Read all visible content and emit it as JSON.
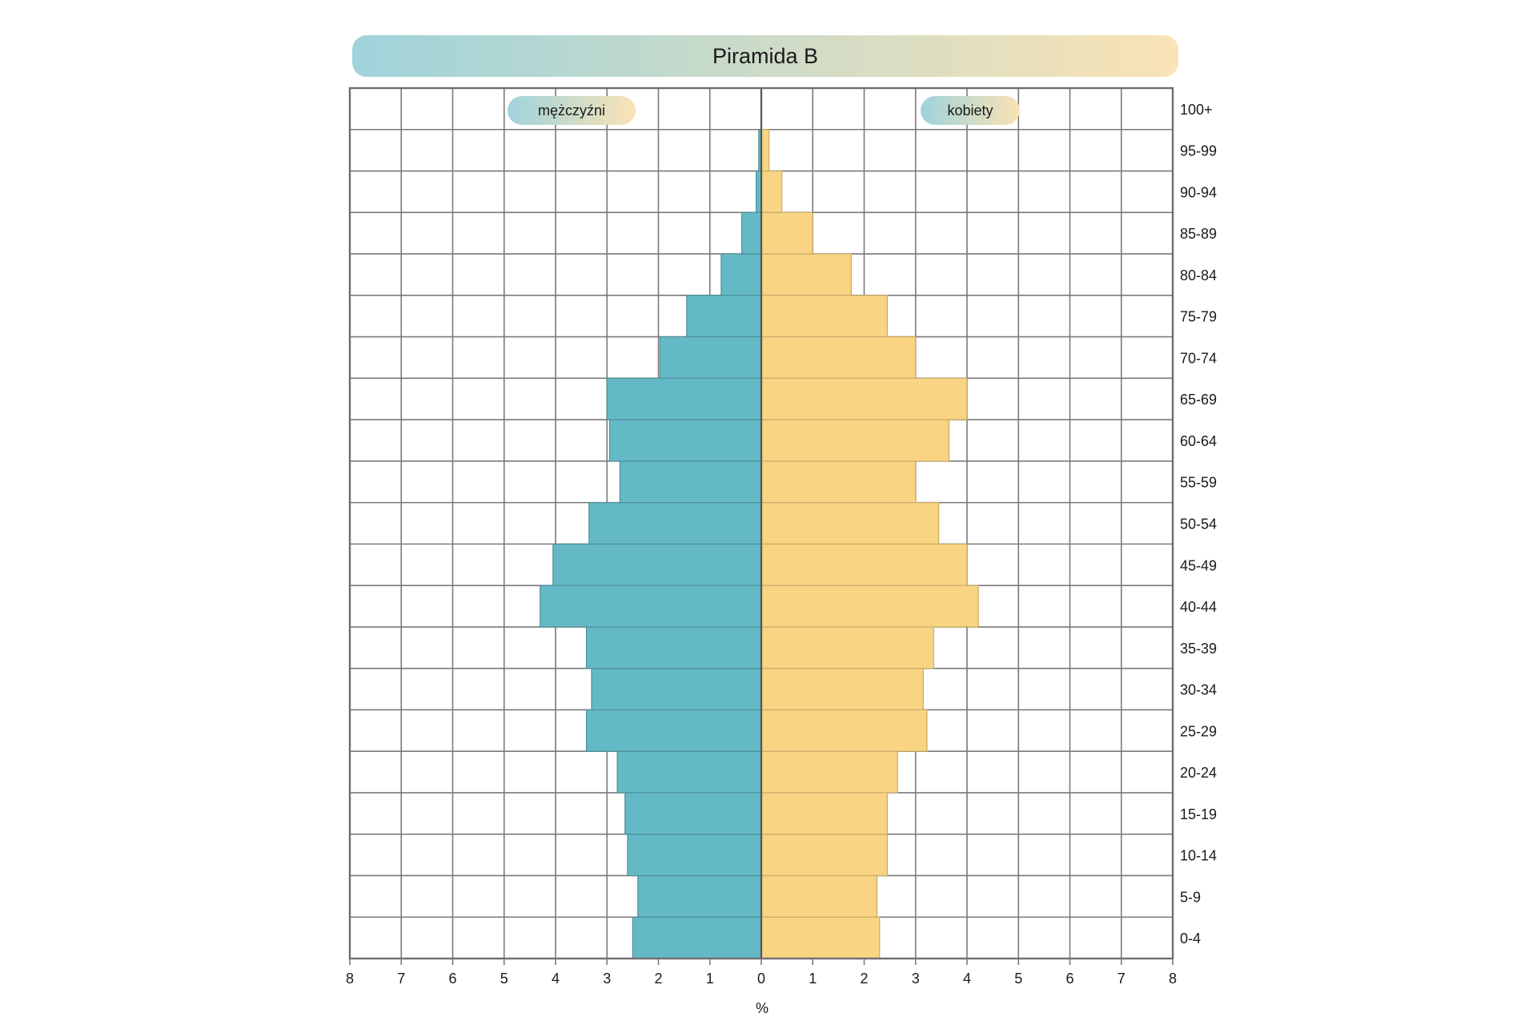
{
  "chart_data": {
    "type": "bar",
    "orientation": "horizontal-population-pyramid",
    "title": "Piramida B",
    "xlabel": "%",
    "xlim": [
      -8,
      8
    ],
    "x_ticks": [
      8,
      7,
      6,
      5,
      4,
      3,
      2,
      1,
      0,
      1,
      2,
      3,
      4,
      5,
      6,
      7,
      8
    ],
    "grid": true,
    "categories": [
      "0-4",
      "5-9",
      "10-14",
      "15-19",
      "20-24",
      "25-29",
      "30-34",
      "35-39",
      "40-44",
      "45-49",
      "50-54",
      "55-59",
      "60-64",
      "65-69",
      "70-74",
      "75-79",
      "80-84",
      "85-89",
      "90-94",
      "95-99",
      "100+"
    ],
    "series": [
      {
        "name": "mężczyźni",
        "side": "left",
        "color": "#64b9c6",
        "values": [
          2.5,
          2.4,
          2.6,
          2.65,
          2.8,
          3.4,
          3.3,
          3.4,
          4.3,
          4.05,
          3.35,
          2.75,
          2.95,
          3.0,
          1.97,
          1.45,
          0.78,
          0.38,
          0.1,
          0.05,
          0.0
        ]
      },
      {
        "name": "kobiety",
        "side": "right",
        "color": "#f9d483",
        "values": [
          2.3,
          2.25,
          2.45,
          2.45,
          2.65,
          3.22,
          3.15,
          3.35,
          4.22,
          4.0,
          3.45,
          3.0,
          3.65,
          4.0,
          3.0,
          2.45,
          1.75,
          1.0,
          0.4,
          0.15,
          0.0
        ]
      }
    ],
    "colors": {
      "male_bar": "#64b9c6",
      "female_bar": "#f9d483",
      "grid": "#7a7a7a",
      "title_gradient_start": "#9fd3db",
      "title_gradient_end": "#fae3b5"
    }
  }
}
